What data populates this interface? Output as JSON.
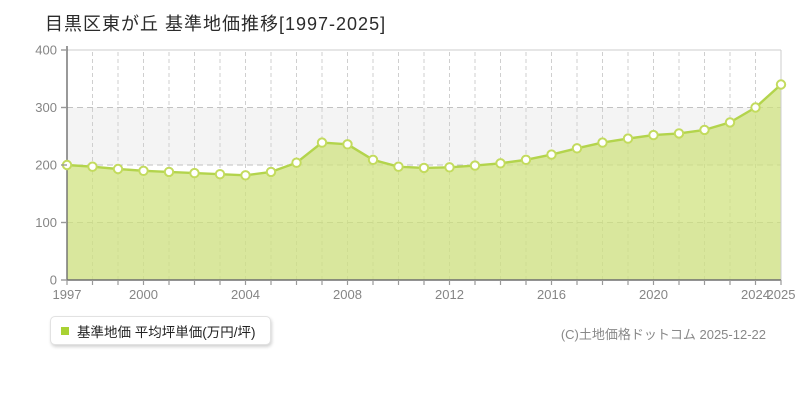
{
  "legend": {
    "marker_icon": "green-square-icon",
    "label": "基準地価 平均坪単価(万円/坪)"
  },
  "footer": {
    "copyright": "(C)土地価格ドットコム 2025-12-22"
  },
  "chart_data": {
    "type": "area",
    "title": "目黒区東が丘 基準地価推移[1997-2025]",
    "series_name": "基準地価 平均坪単価(万円/坪)",
    "x": [
      1997,
      1998,
      1999,
      2000,
      2001,
      2002,
      2003,
      2004,
      2005,
      2006,
      2007,
      2008,
      2009,
      2010,
      2011,
      2012,
      2013,
      2014,
      2015,
      2016,
      2017,
      2018,
      2019,
      2020,
      2021,
      2022,
      2023,
      2024,
      2025
    ],
    "values": [
      200,
      197,
      193,
      190,
      188,
      186,
      184,
      182,
      188,
      204,
      239,
      236,
      209,
      197,
      195,
      196,
      199,
      203,
      209,
      218,
      229,
      239,
      246,
      252,
      255,
      261,
      274,
      300,
      340
    ],
    "ylim": [
      0,
      400
    ],
    "y_ticks": [
      0,
      100,
      200,
      300,
      400
    ],
    "x_tick_years": [
      1997,
      2000,
      2004,
      2008,
      2012,
      2016,
      2020,
      2024,
      2025
    ],
    "x_tick_labels": [
      "1997",
      "2000",
      "2004",
      "2008",
      "2012",
      "2016",
      "2020",
      "2024",
      "2025"
    ],
    "grid": true,
    "legend_position": "bottom-left",
    "colors": {
      "area_fill": "#cfe27c",
      "area_fill_opacity": 0.72,
      "line": "#b3d44c",
      "marker_fill": "#ffffff",
      "marker_stroke": "#c3db5e",
      "band_alt": "#f4f4f4",
      "band_main": "#ffffff",
      "grid_vertical": "#cfcfcf",
      "grid_horizontal": "#c2c2c2",
      "plot_border": "#cccccc",
      "axis": "#6e6e6e",
      "tick": "#999999",
      "tick_label": "#858585",
      "legend_marker": "#a9d233",
      "title_color": "#2b2b2b"
    }
  }
}
